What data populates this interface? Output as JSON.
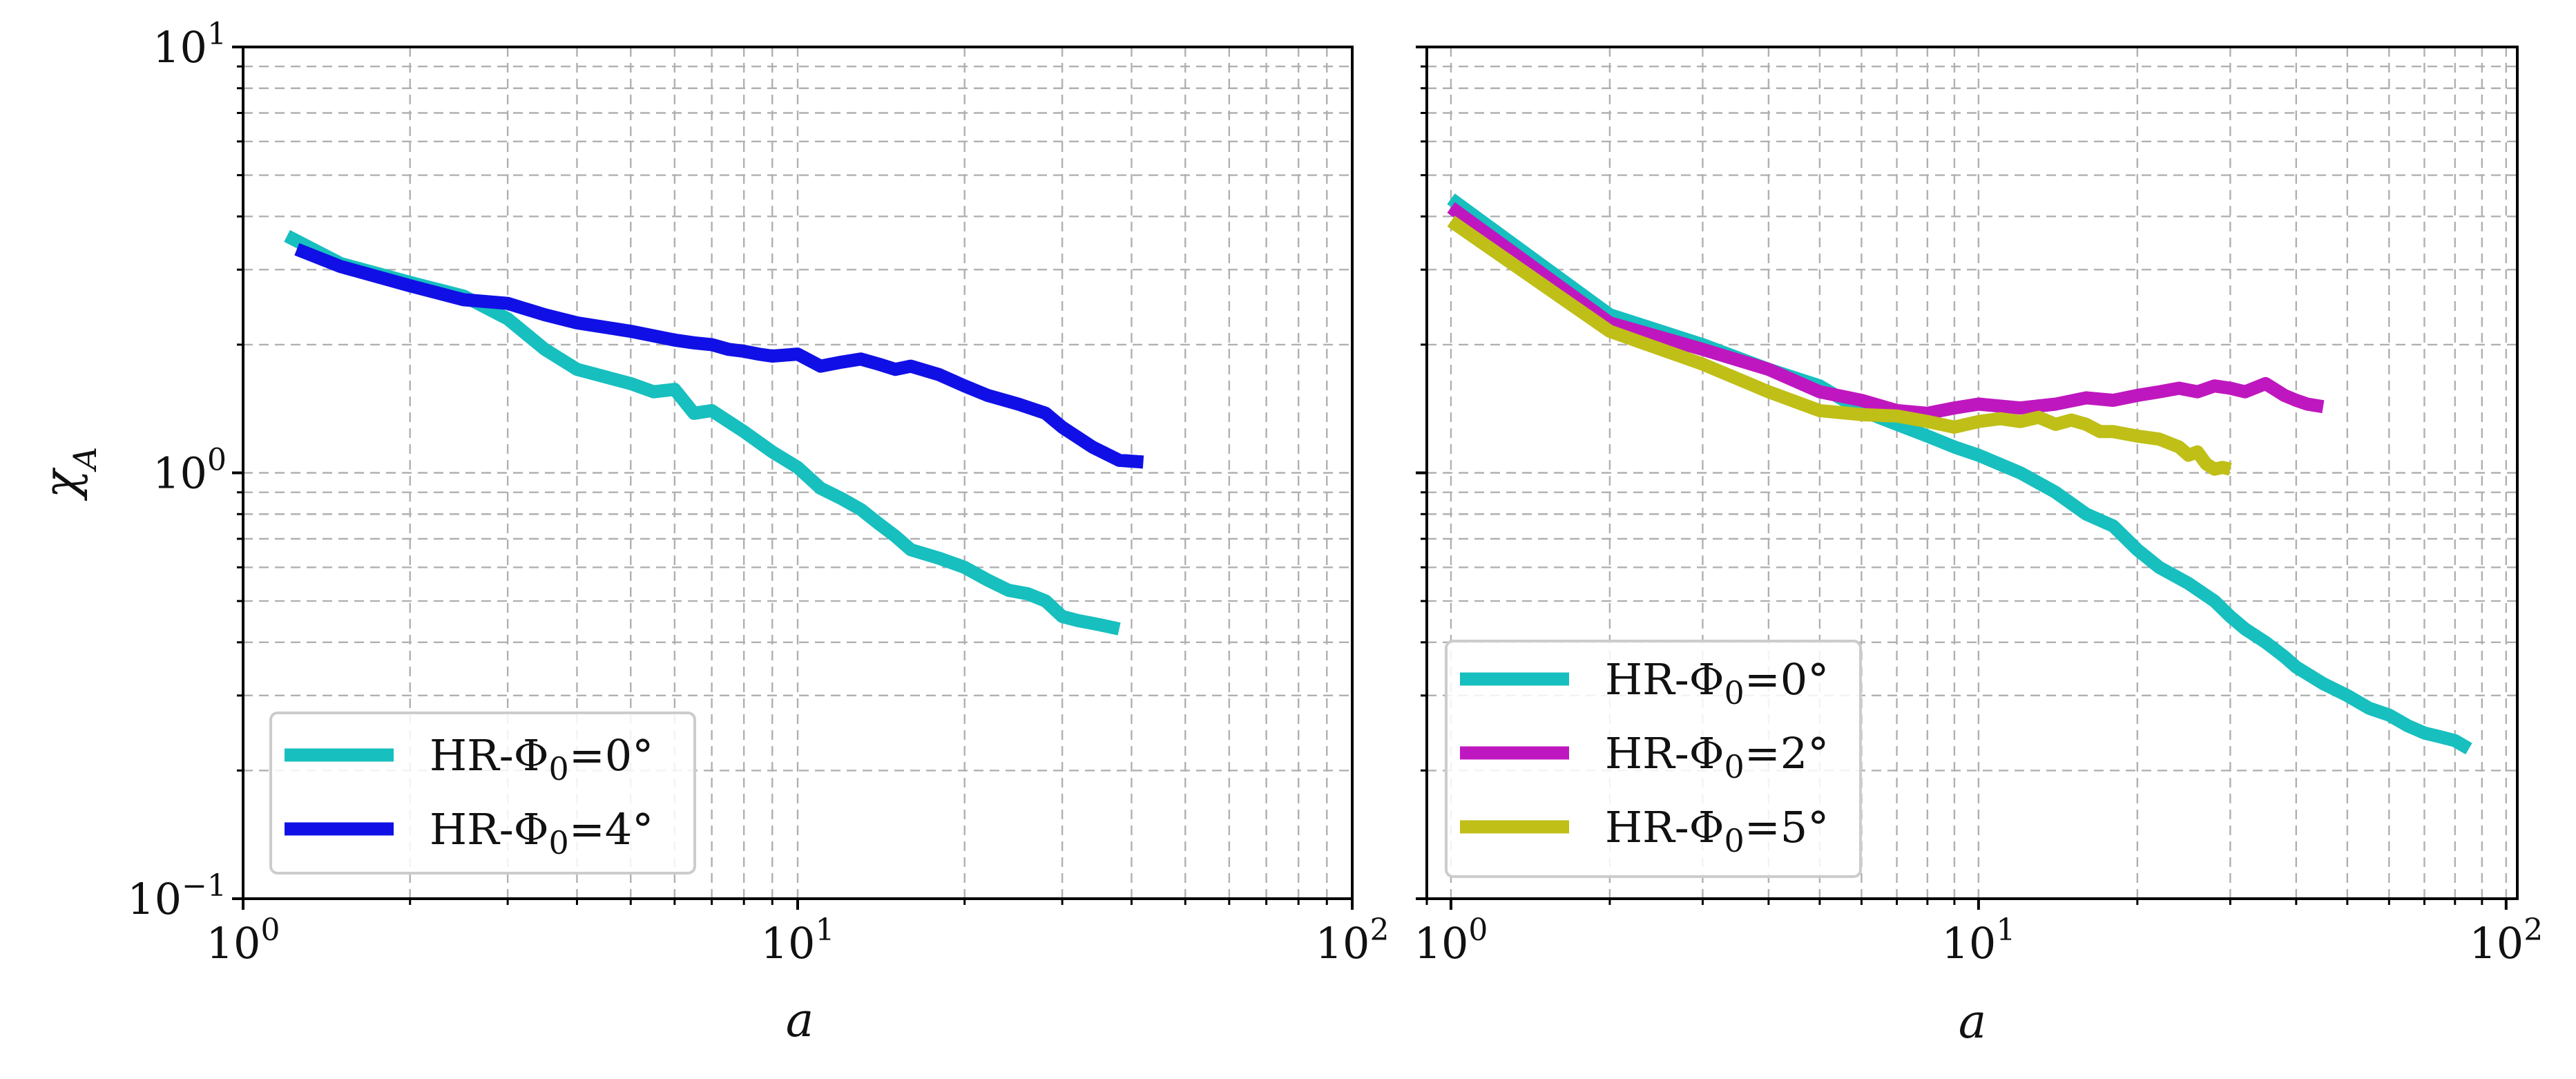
{
  "chart_data": [
    {
      "type": "line",
      "xscale": "log",
      "yscale": "log",
      "xlim": [
        1,
        100
      ],
      "ylim": [
        0.1,
        10
      ],
      "xlabel": "a",
      "ylabel": "χ_A",
      "ylabel_main": "χ",
      "ylabel_sub": "A",
      "xticks": [
        {
          "base": "10",
          "exp": "0"
        },
        {
          "base": "10",
          "exp": "1"
        },
        {
          "base": "10",
          "exp": "2"
        }
      ],
      "yticks": [
        {
          "base": "10",
          "exp": "1"
        },
        {
          "base": "10",
          "exp": "0"
        },
        {
          "base": "10",
          "exp": "−1"
        }
      ],
      "grid": true,
      "legend_position": "lower-left",
      "series": [
        {
          "name": "HR-Φ0=0°",
          "prefix": "HR-Φ",
          "sub": "0",
          "eq": "=0°",
          "color": "#17bfbf",
          "x": [
            1.2,
            1.5,
            2.0,
            2.5,
            3.0,
            3.5,
            4.0,
            4.5,
            5.0,
            5.5,
            6.0,
            6.5,
            7.0,
            8.0,
            9.0,
            10.0,
            11.0,
            12.0,
            13.0,
            14.0,
            15.0,
            16.0,
            18.0,
            20.0,
            22.0,
            24.0,
            26.0,
            28.0,
            30.0,
            32.0,
            35.0,
            38.0
          ],
          "y": [
            3.6,
            3.1,
            2.8,
            2.6,
            2.3,
            1.95,
            1.75,
            1.68,
            1.62,
            1.55,
            1.57,
            1.38,
            1.4,
            1.25,
            1.12,
            1.03,
            0.92,
            0.87,
            0.82,
            0.76,
            0.71,
            0.66,
            0.63,
            0.6,
            0.56,
            0.53,
            0.52,
            0.5,
            0.46,
            0.45,
            0.44,
            0.43
          ]
        },
        {
          "name": "HR-Φ0=4°",
          "prefix": "HR-Φ",
          "sub": "0",
          "eq": "=4°",
          "color": "#1010e6",
          "x": [
            1.25,
            1.5,
            2.0,
            2.5,
            3.0,
            3.5,
            4.0,
            5.0,
            6.0,
            6.5,
            7.0,
            7.5,
            8.0,
            8.5,
            9.0,
            10.0,
            11.0,
            12.0,
            13.0,
            14.0,
            15.0,
            16.0,
            18.0,
            20.0,
            22.0,
            25.0,
            28.0,
            30.0,
            34.0,
            38.0,
            42.0
          ],
          "y": [
            3.35,
            3.05,
            2.75,
            2.55,
            2.5,
            2.35,
            2.25,
            2.15,
            2.05,
            2.02,
            2.0,
            1.95,
            1.93,
            1.9,
            1.88,
            1.9,
            1.78,
            1.82,
            1.85,
            1.8,
            1.75,
            1.78,
            1.7,
            1.6,
            1.52,
            1.45,
            1.38,
            1.28,
            1.15,
            1.07,
            1.06
          ]
        }
      ]
    },
    {
      "type": "line",
      "xscale": "log",
      "yscale": "log",
      "xlim": [
        0.9,
        105
      ],
      "ylim": [
        0.1,
        10
      ],
      "xlabel": "a",
      "xticks": [
        {
          "base": "10",
          "exp": "0"
        },
        {
          "base": "10",
          "exp": "1"
        },
        {
          "base": "10",
          "exp": "2"
        }
      ],
      "grid": true,
      "legend_position": "lower-left",
      "series": [
        {
          "name": "HR-Φ0=0°",
          "prefix": "HR-Φ",
          "sub": "0",
          "eq": "=0°",
          "color": "#17bfbf",
          "x": [
            1,
            2,
            3,
            4,
            5,
            6,
            7,
            8,
            9,
            10,
            12,
            14,
            16,
            18,
            20,
            22,
            25,
            28,
            30,
            32,
            35,
            38,
            40,
            45,
            50,
            55,
            60,
            65,
            70,
            75,
            80,
            85
          ],
          "y": [
            4.4,
            2.35,
            2.0,
            1.75,
            1.6,
            1.4,
            1.3,
            1.22,
            1.15,
            1.1,
            1.0,
            0.9,
            0.8,
            0.75,
            0.66,
            0.6,
            0.55,
            0.5,
            0.46,
            0.43,
            0.4,
            0.37,
            0.35,
            0.32,
            0.3,
            0.28,
            0.27,
            0.255,
            0.245,
            0.24,
            0.235,
            0.225
          ]
        },
        {
          "name": "HR-Φ0=2°",
          "prefix": "HR-Φ",
          "sub": "0",
          "eq": "=2°",
          "color": "#bf17bf",
          "x": [
            1,
            2,
            3,
            4,
            5,
            6,
            7,
            8,
            9,
            10,
            12,
            14,
            16,
            18,
            20,
            22,
            24,
            26,
            28,
            30,
            32,
            35,
            38,
            40,
            42,
            45
          ],
          "y": [
            4.2,
            2.25,
            1.95,
            1.75,
            1.55,
            1.48,
            1.4,
            1.38,
            1.42,
            1.45,
            1.42,
            1.45,
            1.5,
            1.48,
            1.52,
            1.55,
            1.58,
            1.55,
            1.6,
            1.58,
            1.55,
            1.62,
            1.52,
            1.48,
            1.45,
            1.43
          ]
        },
        {
          "name": "HR-Φ0=5°",
          "prefix": "HR-Φ",
          "sub": "0",
          "eq": "=5°",
          "color": "#bfbf17",
          "x": [
            1,
            2,
            3,
            4,
            5,
            6,
            7,
            8,
            9,
            10,
            11,
            12,
            13,
            14,
            15,
            16,
            17,
            18,
            20,
            22,
            24,
            25,
            26,
            27,
            28,
            29,
            30
          ],
          "y": [
            3.9,
            2.15,
            1.8,
            1.55,
            1.4,
            1.37,
            1.36,
            1.32,
            1.28,
            1.32,
            1.34,
            1.32,
            1.35,
            1.3,
            1.33,
            1.3,
            1.25,
            1.25,
            1.22,
            1.2,
            1.15,
            1.1,
            1.12,
            1.05,
            1.02,
            1.03,
            1.02
          ]
        }
      ]
    }
  ]
}
